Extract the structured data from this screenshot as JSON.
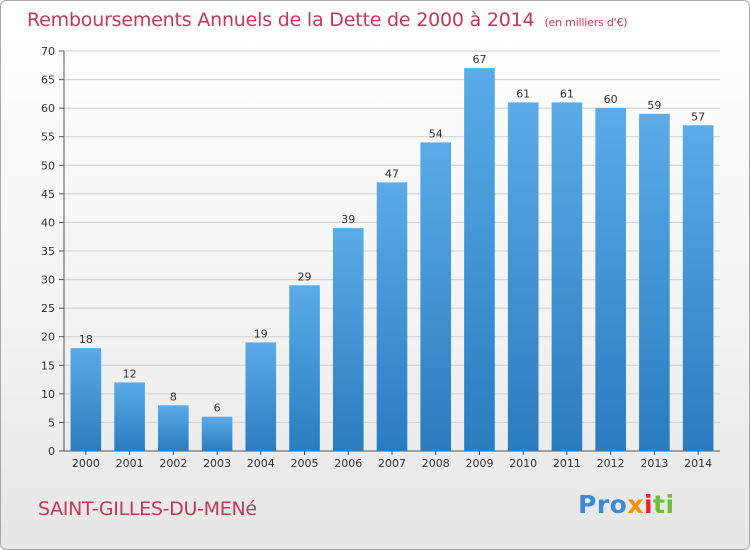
{
  "title": "Remboursements Annuels de la Dette de 2000 à 2014",
  "unit_note": "(en milliers d'€)",
  "commune": "SAINT-GILLES-DU-MENé",
  "logo": {
    "part1": "Pro",
    "part2": "x",
    "part3": "i",
    "part4": "ti"
  },
  "colors": {
    "title": "#c0395a",
    "bar_top": "#5aabe8",
    "bar_bottom": "#2a7cc0",
    "grid": "#cfcfcf"
  },
  "chart_data": {
    "type": "bar",
    "title": "Remboursements Annuels de la Dette de 2000 à 2014",
    "xlabel": "",
    "ylabel": "",
    "categories": [
      "2000",
      "2001",
      "2002",
      "2003",
      "2004",
      "2005",
      "2006",
      "2007",
      "2008",
      "2009",
      "2010",
      "2011",
      "2012",
      "2013",
      "2014"
    ],
    "values": [
      18,
      12,
      8,
      6,
      19,
      29,
      39,
      47,
      54,
      67,
      61,
      61,
      60,
      59,
      57
    ],
    "ylim": [
      0,
      70
    ],
    "yticks": [
      0,
      5,
      10,
      15,
      20,
      25,
      30,
      35,
      40,
      45,
      50,
      55,
      60,
      65,
      70
    ],
    "grid": true,
    "data_labels": true
  }
}
